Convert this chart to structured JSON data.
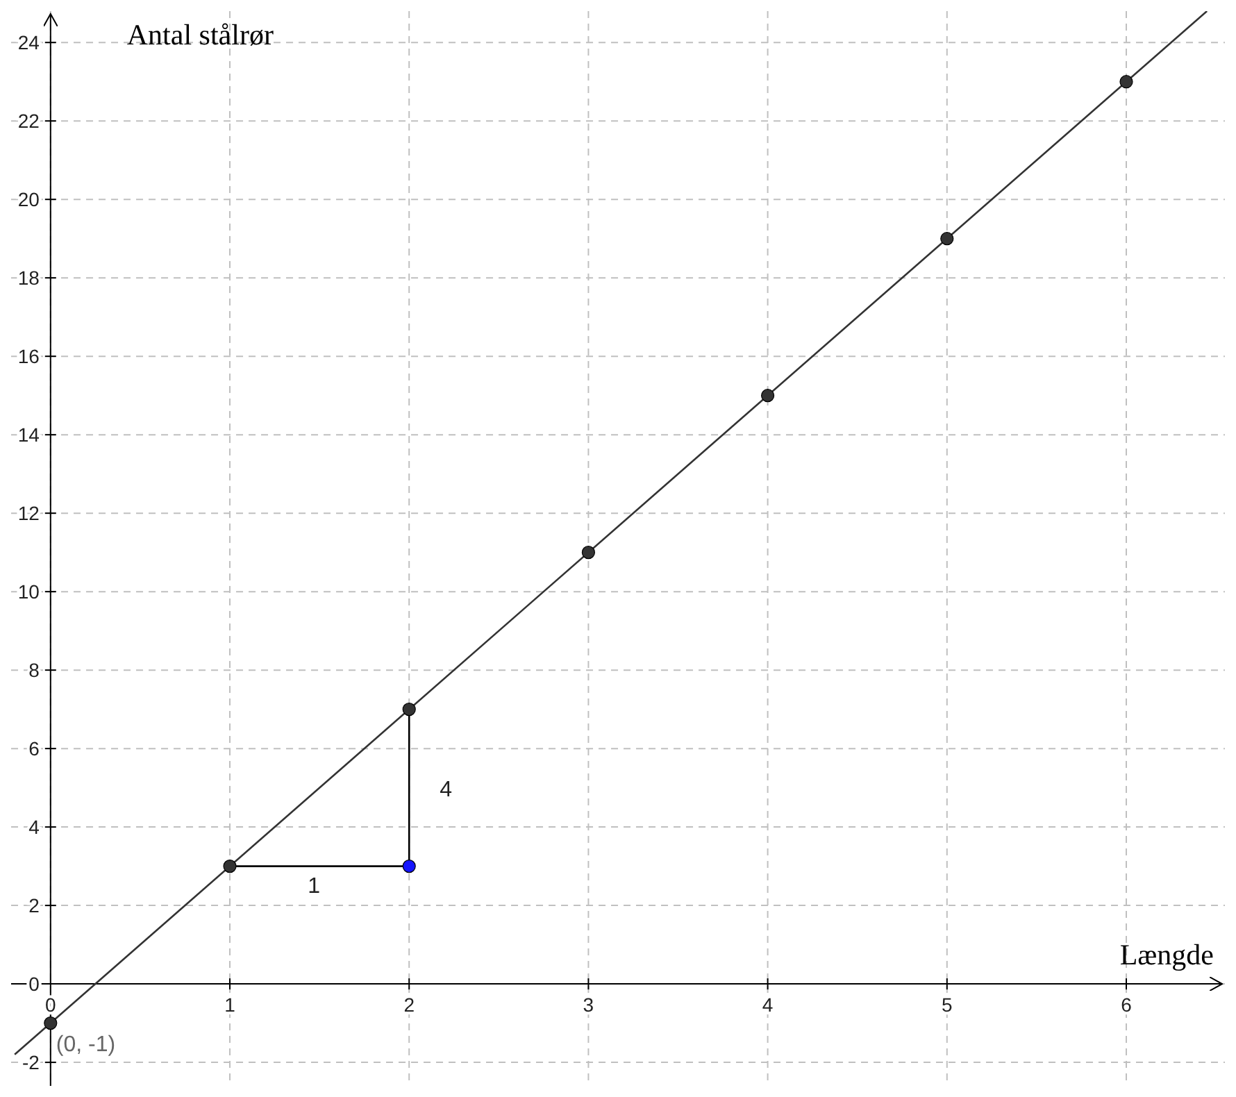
{
  "chart_data": {
    "type": "scatter",
    "xlabel": "Længde",
    "ylabel": "Antal stålrør",
    "xlim": [
      -0.22,
      6.55
    ],
    "ylim": [
      -2.6,
      24.8
    ],
    "xticks": [
      0,
      1,
      2,
      3,
      4,
      5,
      6
    ],
    "yticks": [
      -2,
      0,
      2,
      4,
      6,
      8,
      10,
      12,
      14,
      16,
      18,
      20,
      22,
      24
    ],
    "grid": true,
    "marker": "circle",
    "series": [
      {
        "type": "line",
        "color": "#333333",
        "x": [
          -0.2,
          6.45
        ],
        "values": [
          -1.8,
          24.8
        ],
        "marker": "none"
      },
      {
        "type": "line",
        "color": "#000000",
        "x": [
          1,
          2,
          2
        ],
        "values": [
          3,
          3,
          7
        ],
        "marker": "none"
      },
      {
        "color": "#333333",
        "x": [
          0,
          1,
          2,
          3,
          4,
          5,
          6
        ],
        "values": [
          -1,
          3,
          7,
          11,
          15,
          19,
          23
        ]
      },
      {
        "color": "#1515ff",
        "x": [
          2
        ],
        "values": [
          3
        ]
      }
    ],
    "annotations": [
      {
        "text": "1",
        "x": 1.5,
        "y": 3
      },
      {
        "text": "4",
        "x": 2,
        "y": 5
      },
      {
        "text": "(0, -1)",
        "x": 0,
        "y": -1
      }
    ]
  }
}
